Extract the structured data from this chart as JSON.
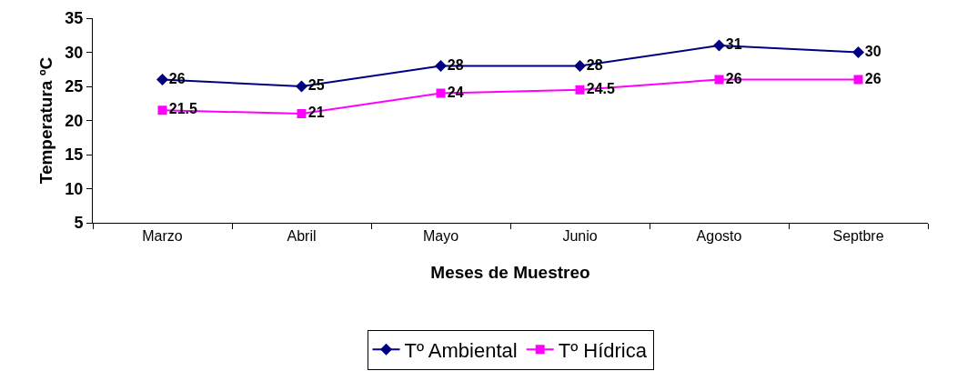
{
  "chart_data": {
    "type": "line",
    "xlabel": "Meses de Muestreo",
    "ylabel": "Temperatura ºC",
    "categories": [
      "Marzo",
      "Abril",
      "Mayo",
      "Junio",
      "Agosto",
      "Septbre"
    ],
    "series": [
      {
        "name": "Tº Ambiental",
        "color": "#000080",
        "marker": "diamond",
        "values": [
          26,
          25,
          28,
          28,
          31,
          30
        ]
      },
      {
        "name": "Tº Hídrica",
        "color": "#ff00ff",
        "marker": "square",
        "values": [
          21.5,
          21,
          24,
          24.5,
          26,
          26
        ]
      }
    ],
    "ylim": [
      5,
      35
    ],
    "yticks": [
      5,
      10,
      15,
      20,
      25,
      30,
      35
    ],
    "grid": false,
    "legend": "bottom",
    "data_labels": true
  }
}
